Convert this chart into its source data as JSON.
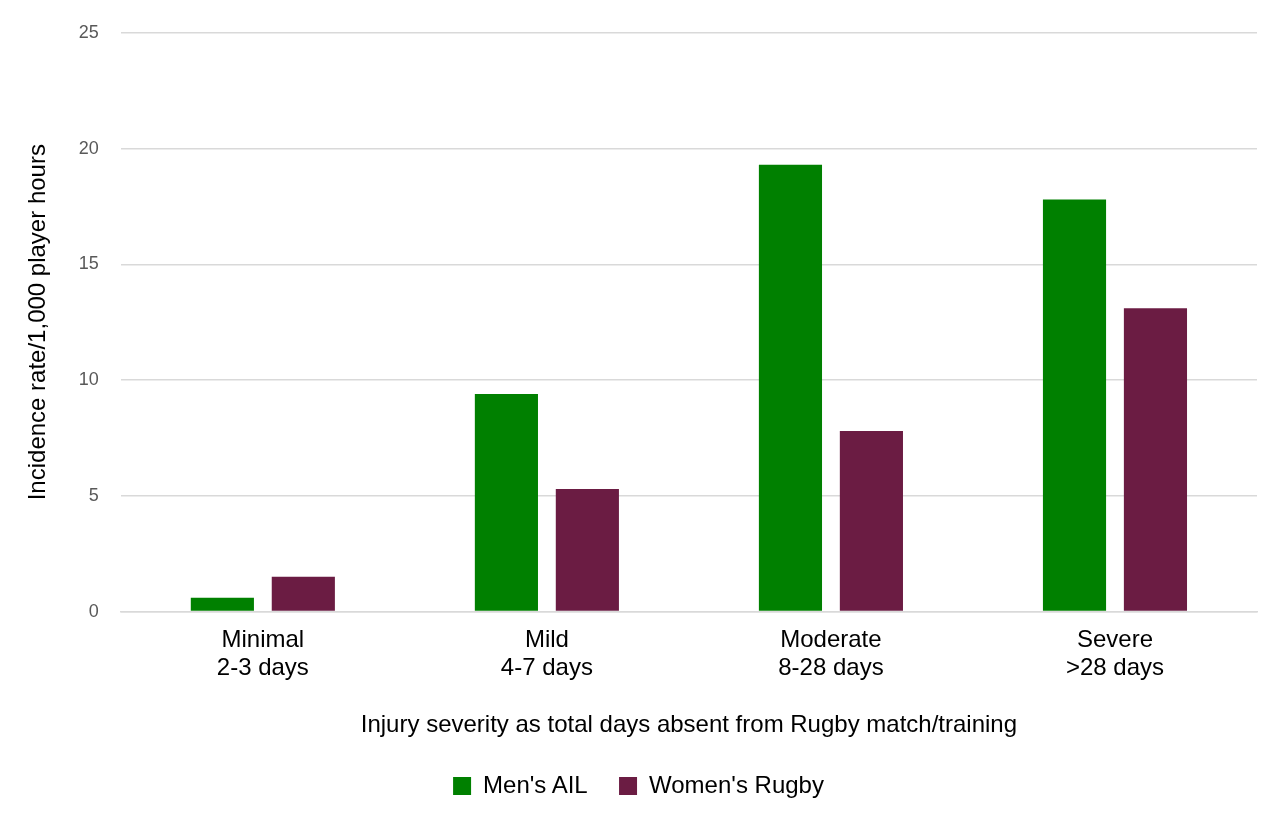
{
  "chart_data": {
    "type": "bar",
    "xlabel": "Injury severity as total days absent from Rugby match/training",
    "ylabel": "Incidence rate/1,000 player hours",
    "categories": [
      "Minimal\n2-3 days",
      "Mild\n4-7 days",
      "Moderate\n8-28 days",
      "Severe\n>28 days"
    ],
    "series": [
      {
        "name": "Men's AIL",
        "color": "#008000",
        "values": [
          0.6,
          9.4,
          19.3,
          17.8
        ]
      },
      {
        "name": "Women's Rugby",
        "color": "#6b1c43",
        "values": [
          1.5,
          5.3,
          7.8,
          13.1
        ]
      }
    ],
    "ylim": [
      0,
      25
    ],
    "yticks": [
      0,
      5,
      10,
      15,
      20,
      25
    ],
    "grid": "y",
    "legend": "bottom"
  }
}
